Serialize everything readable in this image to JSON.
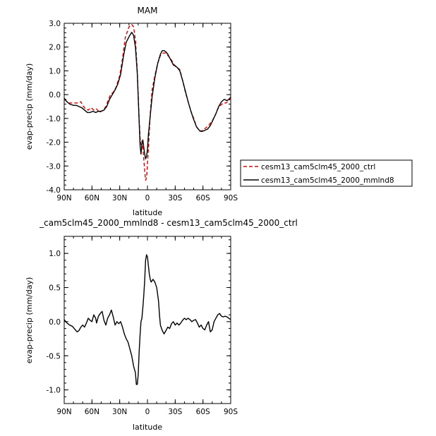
{
  "chart_data": [
    {
      "type": "line",
      "title": "MAM",
      "xlabel": "latitude",
      "ylabel": "evap-precip (mm/day)",
      "xlim": [
        90,
        -90
      ],
      "ylim": [
        -4.0,
        3.0
      ],
      "x_ticks": [
        {
          "value": 90,
          "label": "90N"
        },
        {
          "value": 60,
          "label": "60N"
        },
        {
          "value": 30,
          "label": "30N"
        },
        {
          "value": 0,
          "label": "0"
        },
        {
          "value": -30,
          "label": "30S"
        },
        {
          "value": -60,
          "label": "60S"
        },
        {
          "value": -90,
          "label": "90S"
        }
      ],
      "y_ticks": [
        {
          "value": 3.0,
          "label": "3.0"
        },
        {
          "value": 2.0,
          "label": "2.0"
        },
        {
          "value": 1.0,
          "label": "1.0"
        },
        {
          "value": 0.0,
          "label": "0.0"
        },
        {
          "value": -1.0,
          "label": "-1.0"
        },
        {
          "value": -2.0,
          "label": "-2.0"
        },
        {
          "value": -3.0,
          "label": "-3.0"
        },
        {
          "value": -4.0,
          "label": "-4.0"
        }
      ],
      "legend_position": "right",
      "series": [
        {
          "name": "cesm13_cam5clm45_2000_ctrl",
          "color": "#dd0000",
          "dash": "dashed",
          "points": [
            [
              90,
              -0.2
            ],
            [
              85,
              -0.35
            ],
            [
              80,
              -0.35
            ],
            [
              75,
              -0.35
            ],
            [
              72,
              -0.3
            ],
            [
              70,
              -0.45
            ],
            [
              67,
              -0.6
            ],
            [
              64,
              -0.65
            ],
            [
              61,
              -0.55
            ],
            [
              58,
              -0.65
            ],
            [
              55,
              -0.6
            ],
            [
              52,
              -0.75
            ],
            [
              48,
              -0.65
            ],
            [
              45,
              -0.5
            ],
            [
              42,
              -0.2
            ],
            [
              40,
              0.0
            ],
            [
              37,
              0.1
            ],
            [
              34,
              0.3
            ],
            [
              30,
              0.8
            ],
            [
              27,
              1.5
            ],
            [
              24,
              2.4
            ],
            [
              20,
              2.85
            ],
            [
              17,
              2.95
            ],
            [
              15,
              2.85
            ],
            [
              13,
              2.3
            ],
            [
              11,
              1.0
            ],
            [
              9,
              -1.0
            ],
            [
              8,
              -1.8
            ],
            [
              7,
              -2.1
            ],
            [
              6,
              -1.95
            ],
            [
              5,
              -2.2
            ],
            [
              3,
              -3.2
            ],
            [
              2,
              -3.6
            ],
            [
              1,
              -3.5
            ],
            [
              -1,
              -2.3
            ],
            [
              -3,
              -0.8
            ],
            [
              -5,
              0.2
            ],
            [
              -8,
              0.8
            ],
            [
              -11,
              1.3
            ],
            [
              -14,
              1.65
            ],
            [
              -17,
              1.75
            ],
            [
              -20,
              1.75
            ],
            [
              -23,
              1.6
            ],
            [
              -26,
              1.45
            ],
            [
              -29,
              1.25
            ],
            [
              -32,
              1.15
            ],
            [
              -35,
              1.05
            ],
            [
              -38,
              0.6
            ],
            [
              -41,
              0.1
            ],
            [
              -44,
              -0.3
            ],
            [
              -47,
              -0.7
            ],
            [
              -50,
              -1.0
            ],
            [
              -53,
              -1.35
            ],
            [
              -57,
              -1.55
            ],
            [
              -60,
              -1.5
            ],
            [
              -63,
              -1.4
            ],
            [
              -66,
              -1.3
            ],
            [
              -70,
              -1.1
            ],
            [
              -73,
              -0.9
            ],
            [
              -76,
              -0.6
            ],
            [
              -79,
              -0.45
            ],
            [
              -82,
              -0.35
            ],
            [
              -85,
              -0.35
            ],
            [
              -88,
              -0.25
            ],
            [
              -90,
              -0.15
            ]
          ]
        },
        {
          "name": "cesm13_cam5clm45_2000_mmlnd8",
          "color": "#000000",
          "dash": "solid",
          "points": [
            [
              90,
              -0.15
            ],
            [
              87,
              -0.3
            ],
            [
              84,
              -0.4
            ],
            [
              80,
              -0.45
            ],
            [
              77,
              -0.45
            ],
            [
              74,
              -0.5
            ],
            [
              71,
              -0.55
            ],
            [
              68,
              -0.65
            ],
            [
              65,
              -0.75
            ],
            [
              62,
              -0.75
            ],
            [
              59,
              -0.7
            ],
            [
              56,
              -0.75
            ],
            [
              53,
              -0.7
            ],
            [
              50,
              -0.7
            ],
            [
              47,
              -0.65
            ],
            [
              44,
              -0.5
            ],
            [
              41,
              -0.2
            ],
            [
              38,
              0.0
            ],
            [
              35,
              0.2
            ],
            [
              32,
              0.45
            ],
            [
              29,
              0.85
            ],
            [
              26,
              1.6
            ],
            [
              23,
              2.2
            ],
            [
              19,
              2.5
            ],
            [
              17,
              2.62
            ],
            [
              15,
              2.5
            ],
            [
              13,
              2.0
            ],
            [
              11,
              0.9
            ],
            [
              9,
              -1.1
            ],
            [
              8,
              -2.1
            ],
            [
              7,
              -2.5
            ],
            [
              6,
              -2.1
            ],
            [
              5,
              -1.9
            ],
            [
              4,
              -2.2
            ],
            [
              3,
              -2.5
            ],
            [
              2,
              -2.7
            ],
            [
              1,
              -2.6
            ],
            [
              0,
              -2.3
            ],
            [
              -1,
              -1.7
            ],
            [
              -3,
              -0.9
            ],
            [
              -5,
              -0.1
            ],
            [
              -8,
              0.7
            ],
            [
              -11,
              1.3
            ],
            [
              -14,
              1.7
            ],
            [
              -16,
              1.85
            ],
            [
              -18,
              1.85
            ],
            [
              -20,
              1.8
            ],
            [
              -22,
              1.7
            ],
            [
              -24,
              1.55
            ],
            [
              -26,
              1.4
            ],
            [
              -28,
              1.25
            ],
            [
              -30,
              1.2
            ],
            [
              -32,
              1.15
            ],
            [
              -35,
              1.0
            ],
            [
              -38,
              0.6
            ],
            [
              -41,
              0.15
            ],
            [
              -44,
              -0.3
            ],
            [
              -47,
              -0.7
            ],
            [
              -50,
              -1.05
            ],
            [
              -53,
              -1.35
            ],
            [
              -56,
              -1.5
            ],
            [
              -59,
              -1.55
            ],
            [
              -62,
              -1.5
            ],
            [
              -65,
              -1.45
            ],
            [
              -68,
              -1.3
            ],
            [
              -71,
              -1.05
            ],
            [
              -74,
              -0.8
            ],
            [
              -77,
              -0.5
            ],
            [
              -80,
              -0.3
            ],
            [
              -83,
              -0.2
            ],
            [
              -86,
              -0.25
            ],
            [
              -88,
              -0.2
            ],
            [
              -90,
              -0.1
            ]
          ]
        }
      ]
    },
    {
      "type": "line",
      "title": "_cam5clm45_2000_mmlnd8 - cesm13_cam5clm45_2000_ctrl",
      "xlabel": "latitude",
      "ylabel": "evap-precip (mm/day)",
      "xlim": [
        90,
        -90
      ],
      "ylim": [
        -1.2,
        1.25
      ],
      "x_ticks": [
        {
          "value": 90,
          "label": "90N"
        },
        {
          "value": 60,
          "label": "60N"
        },
        {
          "value": 30,
          "label": "30N"
        },
        {
          "value": 0,
          "label": "0"
        },
        {
          "value": -30,
          "label": "30S"
        },
        {
          "value": -60,
          "label": "60S"
        },
        {
          "value": -90,
          "label": "90S"
        }
      ],
      "y_ticks": [
        {
          "value": 1.0,
          "label": "1.0"
        },
        {
          "value": 0.5,
          "label": "0.5"
        },
        {
          "value": 0.0,
          "label": "0.0"
        },
        {
          "value": -0.5,
          "label": "-0.5"
        },
        {
          "value": -1.0,
          "label": "-1.0"
        }
      ],
      "series": [
        {
          "color": "#000000",
          "dash": "solid",
          "points": [
            [
              90,
              0.03
            ],
            [
              87,
              -0.02
            ],
            [
              84,
              -0.05
            ],
            [
              81,
              -0.07
            ],
            [
              78,
              -0.12
            ],
            [
              76,
              -0.15
            ],
            [
              74,
              -0.13
            ],
            [
              72,
              -0.08
            ],
            [
              70,
              -0.05
            ],
            [
              68,
              -0.08
            ],
            [
              66,
              -0.02
            ],
            [
              64,
              0.05
            ],
            [
              62,
              0.02
            ],
            [
              60,
              0.0
            ],
            [
              58,
              0.1
            ],
            [
              56,
              0.05
            ],
            [
              55,
              -0.02
            ],
            [
              53,
              0.08
            ],
            [
              51,
              0.12
            ],
            [
              49,
              0.15
            ],
            [
              47,
              0.02
            ],
            [
              45,
              -0.05
            ],
            [
              43,
              0.05
            ],
            [
              41,
              0.1
            ],
            [
              39,
              0.17
            ],
            [
              37,
              0.07
            ],
            [
              35,
              -0.05
            ],
            [
              33,
              0.0
            ],
            [
              31,
              -0.03
            ],
            [
              29,
              0.0
            ],
            [
              27,
              -0.08
            ],
            [
              25,
              -0.18
            ],
            [
              23,
              -0.25
            ],
            [
              21,
              -0.3
            ],
            [
              19,
              -0.4
            ],
            [
              17,
              -0.5
            ],
            [
              15,
              -0.65
            ],
            [
              13,
              -0.75
            ],
            [
              12,
              -0.92
            ],
            [
              11,
              -0.92
            ],
            [
              10,
              -0.78
            ],
            [
              9,
              -0.45
            ],
            [
              8,
              -0.2
            ],
            [
              7,
              0.0
            ],
            [
              6,
              0.05
            ],
            [
              5,
              0.2
            ],
            [
              4,
              0.38
            ],
            [
              3,
              0.6
            ],
            [
              2,
              0.9
            ],
            [
              1,
              0.98
            ],
            [
              0,
              0.95
            ],
            [
              -1,
              0.82
            ],
            [
              -2,
              0.7
            ],
            [
              -3,
              0.62
            ],
            [
              -4,
              0.58
            ],
            [
              -6,
              0.62
            ],
            [
              -8,
              0.58
            ],
            [
              -10,
              0.5
            ],
            [
              -12,
              0.3
            ],
            [
              -13,
              0.1
            ],
            [
              -14,
              -0.05
            ],
            [
              -16,
              -0.13
            ],
            [
              -18,
              -0.18
            ],
            [
              -20,
              -0.13
            ],
            [
              -22,
              -0.08
            ],
            [
              -24,
              -0.1
            ],
            [
              -26,
              -0.03
            ],
            [
              -28,
              0.0
            ],
            [
              -30,
              -0.05
            ],
            [
              -32,
              -0.02
            ],
            [
              -34,
              -0.05
            ],
            [
              -36,
              -0.02
            ],
            [
              -38,
              0.02
            ],
            [
              -40,
              0.05
            ],
            [
              -42,
              0.03
            ],
            [
              -44,
              0.05
            ],
            [
              -46,
              0.03
            ],
            [
              -48,
              0.0
            ],
            [
              -50,
              0.02
            ],
            [
              -52,
              0.03
            ],
            [
              -54,
              -0.02
            ],
            [
              -56,
              -0.08
            ],
            [
              -58,
              -0.05
            ],
            [
              -60,
              -0.1
            ],
            [
              -62,
              -0.12
            ],
            [
              -64,
              -0.05
            ],
            [
              -66,
              0.0
            ],
            [
              -68,
              -0.15
            ],
            [
              -70,
              -0.12
            ],
            [
              -72,
              0.0
            ],
            [
              -74,
              0.05
            ],
            [
              -76,
              0.1
            ],
            [
              -78,
              0.12
            ],
            [
              -80,
              0.08
            ],
            [
              -82,
              0.07
            ],
            [
              -84,
              0.08
            ],
            [
              -86,
              0.07
            ],
            [
              -88,
              0.05
            ],
            [
              -90,
              0.03
            ]
          ]
        }
      ]
    }
  ]
}
